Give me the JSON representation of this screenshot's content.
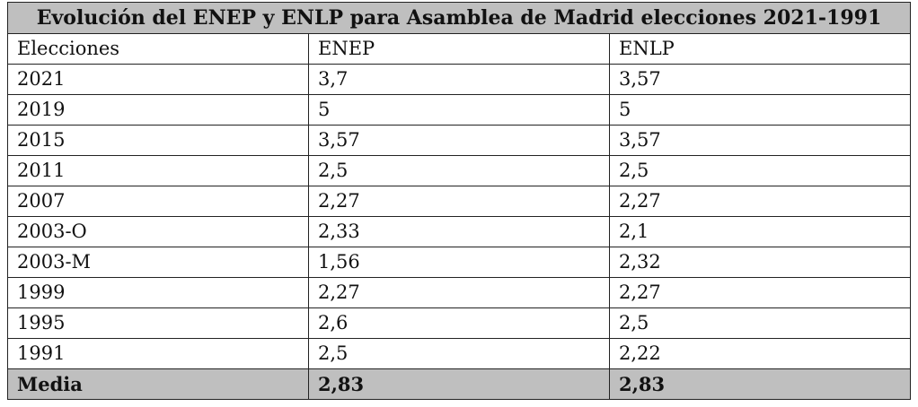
{
  "table": {
    "title": "Evolución del ENEP y ENLP para Asamblea de Madrid elecciones 2021-1991",
    "header": [
      "Elecciones",
      "ENEP",
      "ENLP"
    ],
    "rows": [
      [
        "2021",
        "3,7",
        "3,57"
      ],
      [
        "2019",
        "5",
        "5"
      ],
      [
        "2015",
        "3,57",
        "3,57"
      ],
      [
        "2011",
        "2,5",
        "2,5"
      ],
      [
        "2007",
        "2,27",
        "2,27"
      ],
      [
        "2003-O",
        "2,33",
        "2,1"
      ],
      [
        "2003-M",
        "1,56",
        "2,32"
      ],
      [
        "1999",
        "2,27",
        "2,27"
      ],
      [
        "1995",
        "2,6",
        "2,5"
      ],
      [
        "1991",
        "2,5",
        "2,22"
      ]
    ],
    "footer": [
      "Media",
      "2,83",
      "2,83"
    ]
  }
}
